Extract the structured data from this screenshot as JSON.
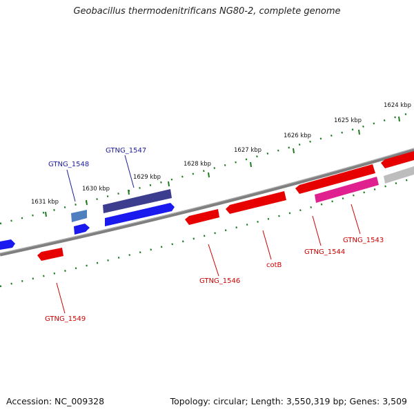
{
  "title": "Geobacillus thermodenitrificans NG80-2, complete genome",
  "footer": {
    "accession": "Accession: NC_009328",
    "summary": "Topology: circular; Length: 3,550,319 bp; Genes: 3,509"
  },
  "colors": {
    "forward_gene": "#1a1aee",
    "reverse_gene": "#e60000",
    "backbone": "#808080",
    "tick": "#1e7a1e",
    "forward_label": "#1a1a99",
    "reverse_label": "#cc0000"
  },
  "scale_labels": [
    "1631 kbp",
    "1630 kbp",
    "1629 kbp",
    "1628 kbp",
    "1627 kbp",
    "1626 kbp",
    "1625 kbp",
    "1624 kbp"
  ],
  "genes": [
    {
      "id": "GTNG_1549",
      "label": "GTNG_1549",
      "strand": "reverse"
    },
    {
      "id": "GTNG_1548",
      "label": "GTNG_1548",
      "strand": "forward"
    },
    {
      "id": "GTNG_1547",
      "label": "GTNG_1547",
      "strand": "forward"
    },
    {
      "id": "GTNG_1546",
      "label": "GTNG_1546",
      "strand": "reverse"
    },
    {
      "id": "cotB",
      "label": "cotB",
      "strand": "reverse"
    },
    {
      "id": "GTNG_1544",
      "label": "GTNG_1544",
      "strand": "reverse"
    },
    {
      "id": "GTNG_1543",
      "label": "GTNG_1543",
      "strand": "reverse"
    }
  ]
}
